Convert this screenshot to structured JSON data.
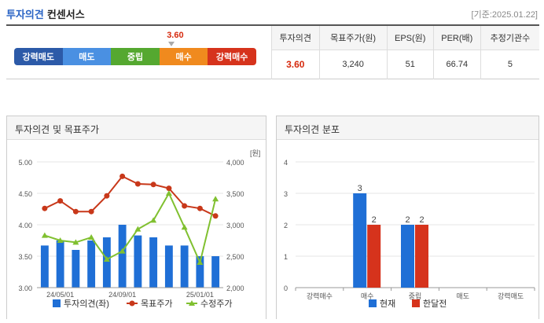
{
  "header": {
    "title_main": "투자의견",
    "title_sub": "컨센서스",
    "date": "[기준:2025.01.22]"
  },
  "scale": {
    "items": [
      {
        "label": "강력매도",
        "color": "#2c5aa8"
      },
      {
        "label": "매도",
        "color": "#4a90e2"
      },
      {
        "label": "중립",
        "color": "#55a830"
      },
      {
        "label": "매수",
        "color": "#f08a1e"
      },
      {
        "label": "강력매수",
        "color": "#d6331c"
      }
    ],
    "marker_value": "3.60",
    "marker_fraction": 0.65
  },
  "opinion_table": {
    "headers": [
      "투자의견",
      "목표주가(원)",
      "EPS(원)",
      "PER(배)",
      "추정기관수"
    ],
    "values": [
      "3.60",
      "3,240",
      "51",
      "66.74",
      "5"
    ]
  },
  "chart1_title": "투자의견 및 목표주가",
  "chart2_title": "투자의견 분포",
  "chart_data": [
    {
      "type": "bar",
      "left_axis": {
        "ticks": [
          "5.00",
          "4.50",
          "4.00",
          "3.50",
          "3.00"
        ],
        "ylim": [
          3.0,
          5.0
        ]
      },
      "right_axis": {
        "ticks": [
          "4,000",
          "3,500",
          "3,000",
          "2,500",
          "2,000"
        ],
        "ylim": [
          2000,
          4000
        ],
        "unit": "[원]"
      },
      "x_tick_labels": [
        "24/05/01",
        "24/09/01",
        "25/01/01"
      ],
      "series": [
        {
          "name": "투자의견(좌)",
          "kind": "bar",
          "color": "#1f6fd6",
          "values": [
            3.67,
            3.75,
            3.6,
            3.75,
            3.8,
            4.0,
            3.83,
            3.8,
            3.67,
            3.67,
            3.5,
            3.5
          ]
        },
        {
          "name": "목표주가",
          "kind": "line",
          "color": "#c8381a",
          "values": [
            3260,
            3380,
            3210,
            3210,
            3460,
            3770,
            3650,
            3640,
            3580,
            3300,
            3260,
            3140
          ]
        },
        {
          "name": "수정주가",
          "kind": "line",
          "color": "#80c030",
          "values": [
            2830,
            2750,
            2720,
            2800,
            2450,
            2580,
            2930,
            3070,
            3500,
            2960,
            2400,
            3410
          ]
        }
      ]
    },
    {
      "type": "bar",
      "categories": [
        "강력매수",
        "매수",
        "중립",
        "매도",
        "강력매도"
      ],
      "ylim": [
        0,
        4
      ],
      "y_ticks": [
        "4",
        "3",
        "2",
        "1",
        "0"
      ],
      "series": [
        {
          "name": "현재",
          "color": "#1f6fd6",
          "values": [
            0,
            3,
            2,
            0,
            0
          ]
        },
        {
          "name": "한달전",
          "color": "#d6331c",
          "values": [
            0,
            2,
            2,
            0,
            0
          ]
        }
      ]
    }
  ]
}
